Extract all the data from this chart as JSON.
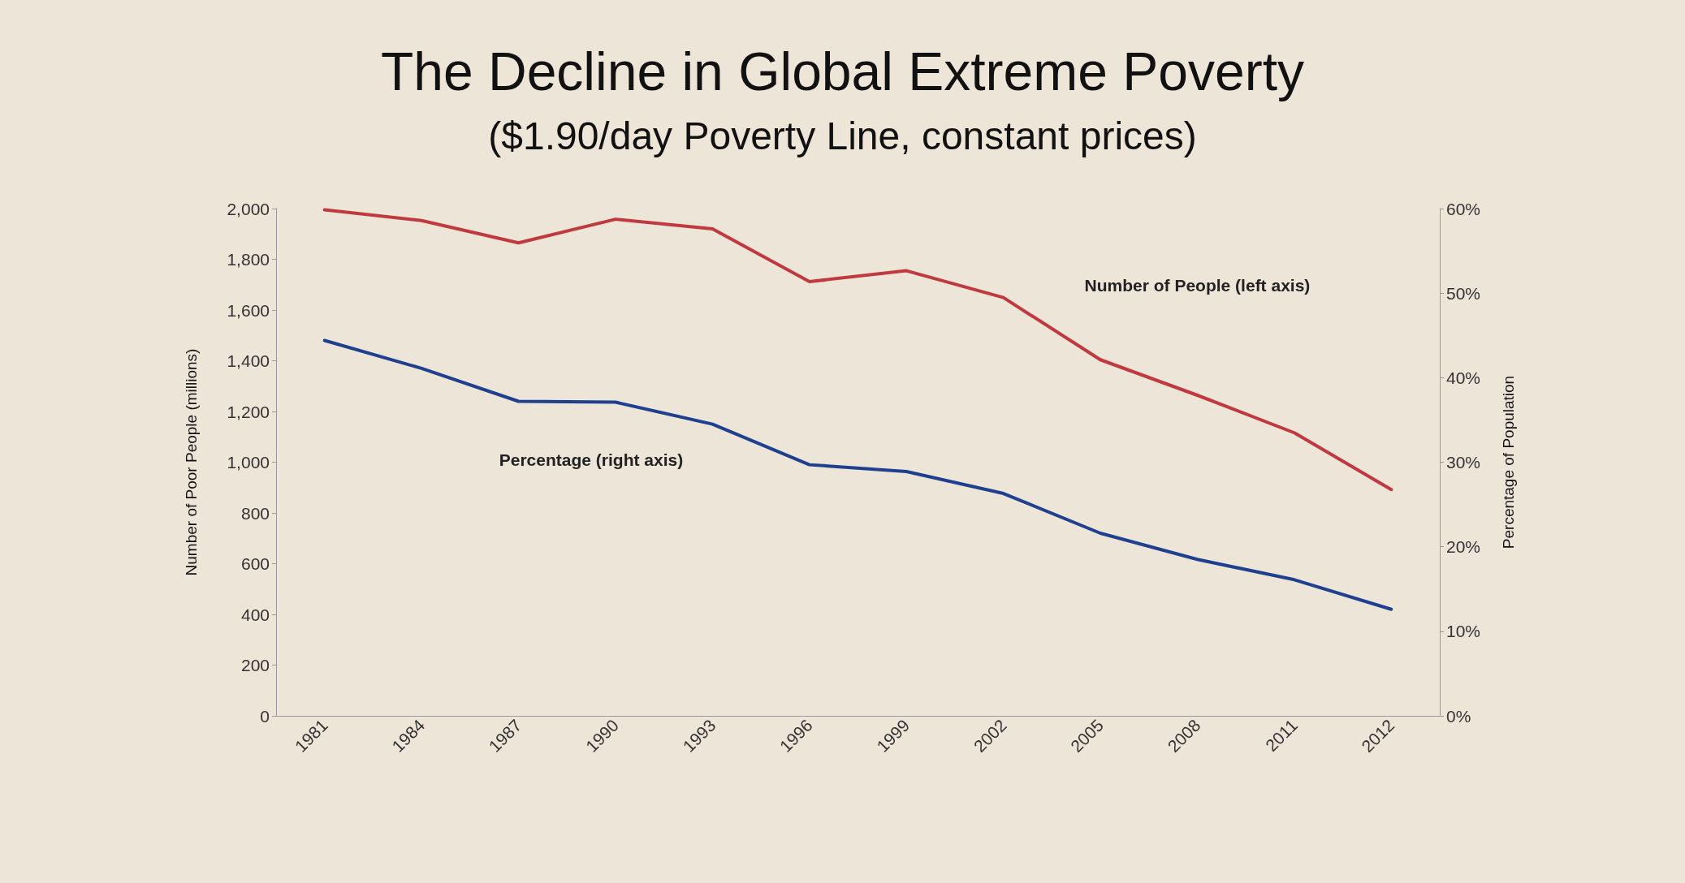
{
  "chart_data": {
    "type": "line",
    "title": "The Decline in Global Extreme Poverty",
    "subtitle": "($1.90/day Poverty Line, constant prices)",
    "categories": [
      "1981",
      "1984",
      "1987",
      "1990",
      "1993",
      "1996",
      "1999",
      "2002",
      "2005",
      "2008",
      "2011",
      "2012"
    ],
    "series": [
      {
        "name": "Number of People (left axis)",
        "color": "#c0393f",
        "values": [
          1995,
          1953,
          1865,
          1958,
          1920,
          1712,
          1755,
          1649,
          1404,
          1264,
          1116,
          892
        ]
      },
      {
        "name": "Percentage (right axis)",
        "color": "#1f3f8f",
        "axis": "y2",
        "values": [
          44.4,
          41.1,
          37.2,
          37.1,
          34.5,
          29.7,
          28.9,
          26.3,
          21.6,
          18.5,
          16.1,
          12.6
        ]
      }
    ],
    "ylabel": "Number of Poor People (millions)",
    "y2label": "Percentage of Population",
    "ylim": [
      0,
      2000
    ],
    "yticks": [
      0,
      {
        "value": 200,
        "label": "200"
      },
      {
        "value": 400,
        "label": "400"
      },
      {
        "value": 600,
        "label": "600"
      },
      {
        "value": 800,
        "label": "800"
      },
      {
        "value": 1000,
        "label": "1,000"
      },
      {
        "value": 1200,
        "label": "1,200"
      },
      {
        "value": 1400,
        "label": "1,400"
      },
      {
        "value": 1600,
        "label": "1,600"
      },
      {
        "value": 1800,
        "label": "1,800"
      },
      {
        "value": 2000,
        "label": "2,000"
      }
    ],
    "y2lim": [
      0,
      60
    ],
    "y2ticks": [
      {
        "value": 0,
        "label": "0%"
      },
      {
        "value": 10,
        "label": "10%"
      },
      {
        "value": 20,
        "label": "20%"
      },
      {
        "value": 30,
        "label": "30%"
      },
      {
        "value": 40,
        "label": "40%"
      },
      {
        "value": 50,
        "label": "50%"
      },
      {
        "value": 60,
        "label": "60%"
      }
    ],
    "grid": false,
    "legend": false,
    "marker": "none",
    "line_style": "solid"
  }
}
